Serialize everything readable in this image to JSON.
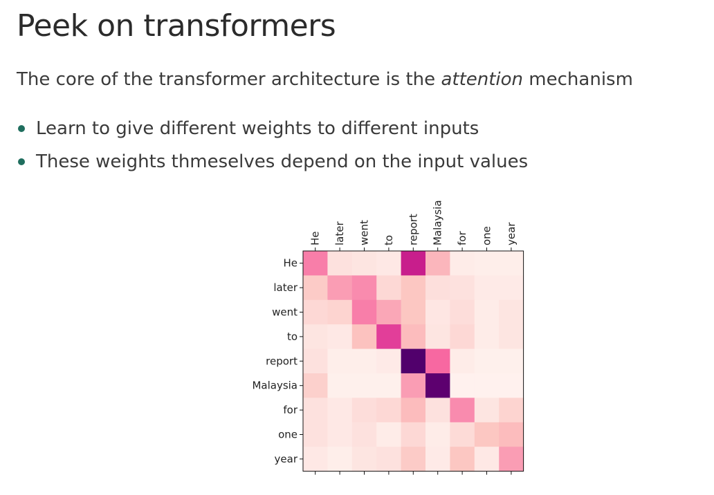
{
  "slide": {
    "title": "Peek on transformers",
    "intro_before": "The core of the transformer architecture is the ",
    "intro_emphasis": "attention",
    "intro_after": " mechanism",
    "bullets": [
      "Learn to give different weights to different inputs",
      "These weights thmeselves depend on the input values"
    ]
  },
  "colors": {
    "bullet": "#1f6e5e",
    "colormap_low": "#fff7f3",
    "colormap_mid": "#f768a1",
    "colormap_high": "#49006a"
  },
  "chart_data": {
    "type": "heatmap",
    "x_labels": [
      "He",
      "later",
      "went",
      "to",
      "report",
      "Malaysia",
      "for",
      "one",
      "year"
    ],
    "y_labels": [
      "He",
      "later",
      "went",
      "to",
      "report",
      "Malaysia",
      "for",
      "one",
      "year"
    ],
    "x_tick_position": "top",
    "x_tick_rotation": "vertical",
    "colormap": "RdPu",
    "grid": false,
    "values": [
      [
        0.45,
        0.12,
        0.1,
        0.08,
        0.68,
        0.3,
        0.06,
        0.05,
        0.05
      ],
      [
        0.22,
        0.38,
        0.42,
        0.16,
        0.24,
        0.13,
        0.12,
        0.07,
        0.07
      ],
      [
        0.16,
        0.18,
        0.45,
        0.35,
        0.24,
        0.09,
        0.14,
        0.06,
        0.1
      ],
      [
        0.1,
        0.08,
        0.26,
        0.6,
        0.28,
        0.1,
        0.16,
        0.06,
        0.1
      ],
      [
        0.12,
        0.05,
        0.05,
        0.07,
        0.98,
        0.5,
        0.06,
        0.04,
        0.04
      ],
      [
        0.2,
        0.04,
        0.04,
        0.04,
        0.38,
        0.95,
        0.03,
        0.03,
        0.03
      ],
      [
        0.12,
        0.08,
        0.14,
        0.16,
        0.28,
        0.12,
        0.42,
        0.1,
        0.18
      ],
      [
        0.12,
        0.08,
        0.12,
        0.06,
        0.16,
        0.06,
        0.15,
        0.24,
        0.28
      ],
      [
        0.08,
        0.05,
        0.1,
        0.12,
        0.22,
        0.07,
        0.24,
        0.08,
        0.38
      ]
    ]
  }
}
